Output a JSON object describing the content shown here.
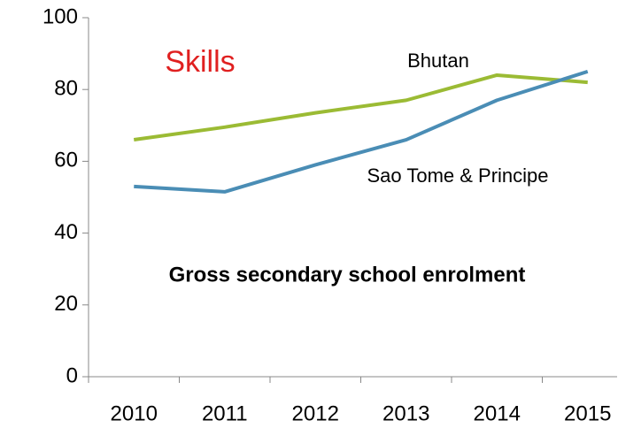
{
  "chart_data": {
    "type": "line",
    "categories": [
      "2010",
      "2011",
      "2012",
      "2013",
      "2014",
      "2015"
    ],
    "series": [
      {
        "name": "Bhutan",
        "color": "#9bbb34",
        "values": [
          66,
          69.5,
          73.5,
          77,
          84,
          82
        ]
      },
      {
        "name": "Sao Tome & Principe",
        "color": "#4a8db5",
        "values": [
          53,
          51.5,
          59,
          66,
          77,
          85
        ]
      }
    ],
    "annotations": [
      "Skills",
      "Gross secondary school enrolment"
    ],
    "ylim": [
      0,
      100
    ],
    "yticks": [
      0,
      20,
      40,
      60,
      80,
      100
    ],
    "grid": false
  }
}
